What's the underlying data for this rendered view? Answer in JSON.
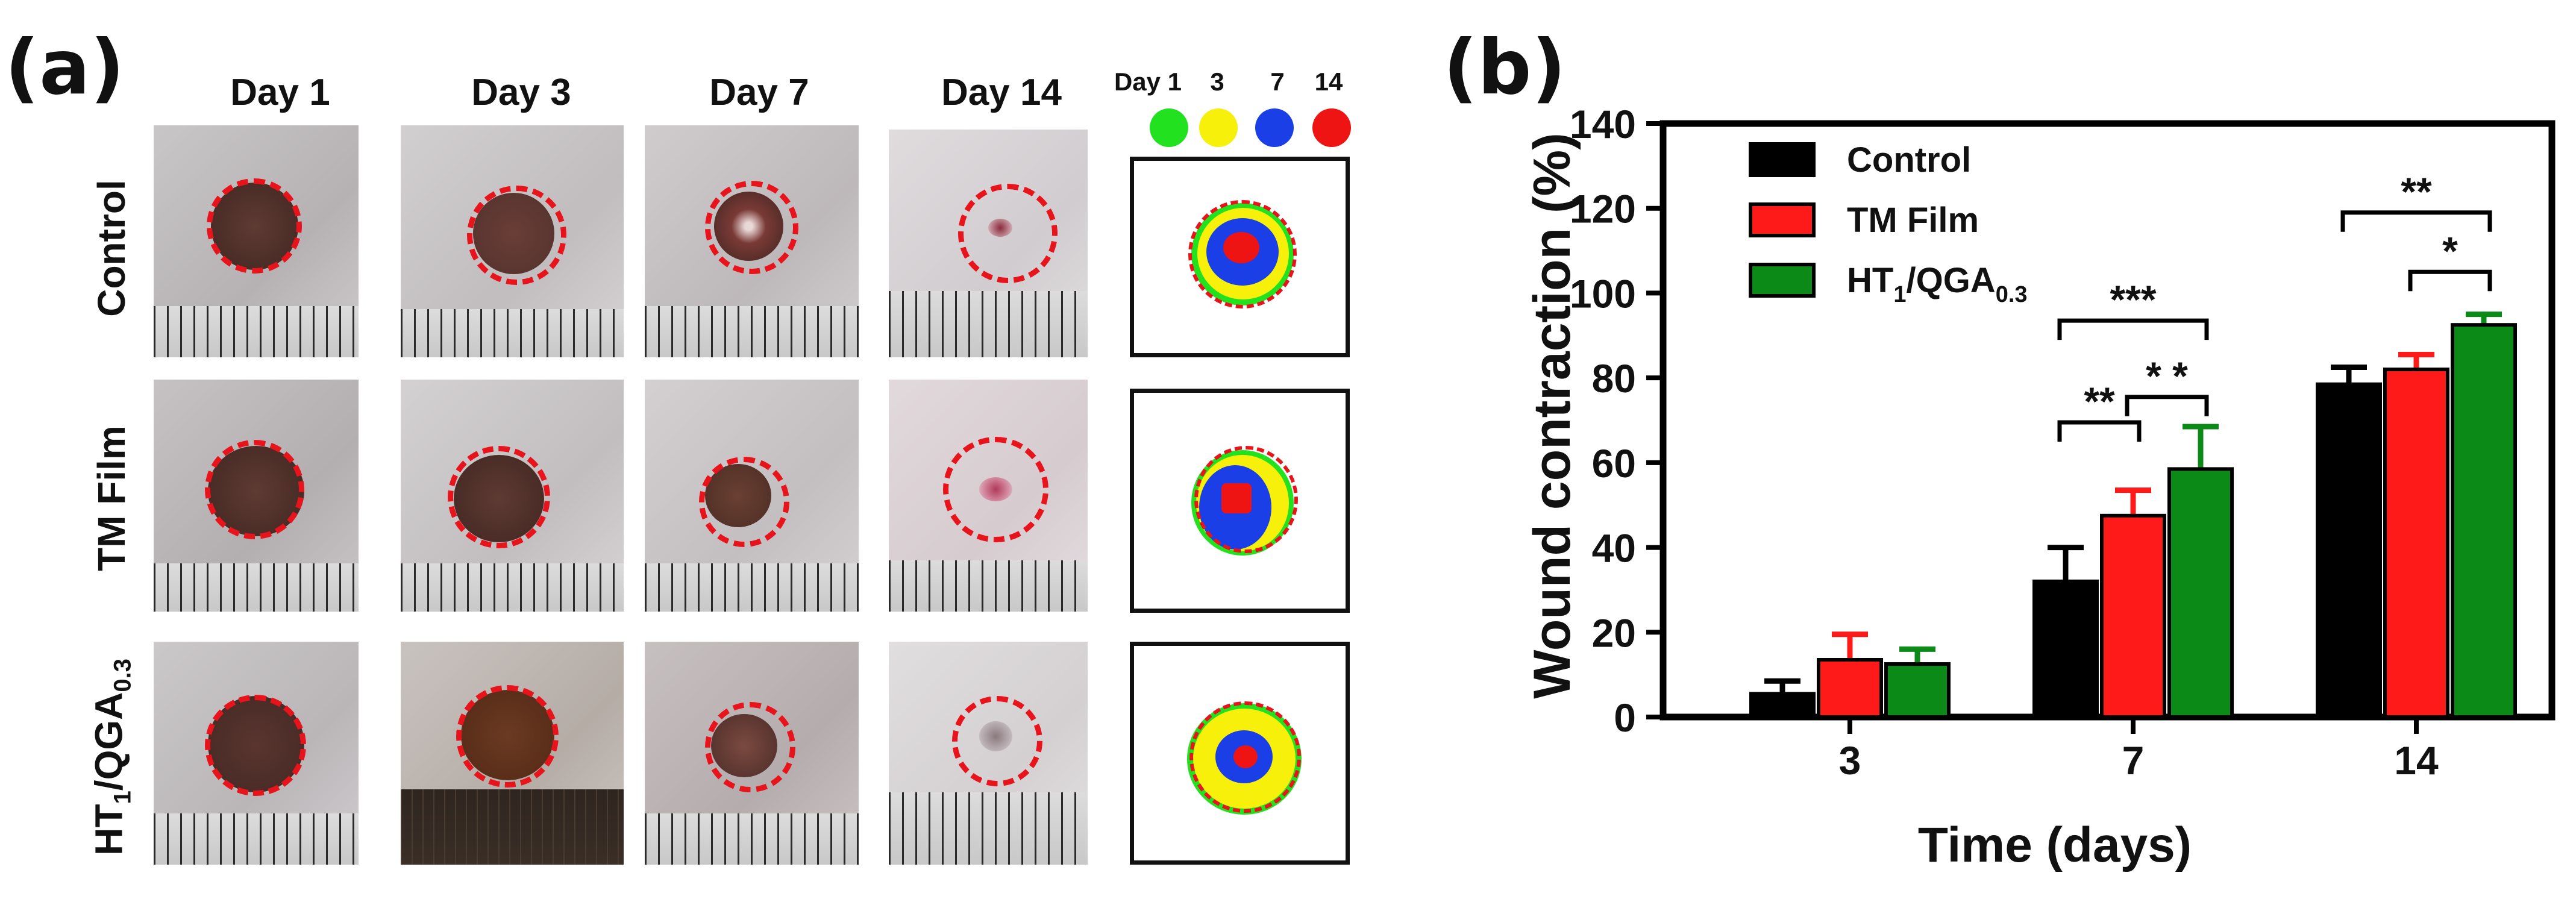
{
  "panel_a": {
    "letter": "(a)",
    "day_headers": [
      "Day 1",
      "Day 3",
      "Day 7",
      "Day 14"
    ],
    "legend": {
      "labels": [
        "Day 1",
        "3",
        "7",
        "14"
      ],
      "colors": [
        "#22e11f",
        "#f6f00b",
        "#1b3fe6",
        "#ef1414"
      ]
    },
    "rows": [
      {
        "label": "Control",
        "label_sub": "",
        "label_tail": ""
      },
      {
        "label": "TM Film",
        "label_sub": "",
        "label_tail": ""
      },
      {
        "label": "HT",
        "label_sub": "1",
        "label_tail": "/QGA",
        "label_sub2": "0.3"
      }
    ]
  },
  "panel_b": {
    "letter": "(b)"
  },
  "chart_data": {
    "type": "bar",
    "title": "",
    "xlabel": "Time (days)",
    "ylabel": "Wound contraction (%)",
    "categories": [
      "3",
      "7",
      "14"
    ],
    "ylim": [
      0,
      140
    ],
    "yticks": [
      "0",
      "20",
      "40",
      "60",
      "80",
      "100",
      "120",
      "140"
    ],
    "legend_position": "top-left",
    "series": [
      {
        "name": "Control",
        "name_main": "Control",
        "color": "#000000",
        "values": [
          5.5,
          32,
          78.5
        ],
        "errors": [
          3,
          8,
          4
        ]
      },
      {
        "name": "TM Film",
        "name_main": "TM Film",
        "color": "#ff1a1a",
        "values": [
          13.5,
          47.5,
          82
        ],
        "errors": [
          6,
          6,
          3.5
        ]
      },
      {
        "name": "HT1/QGA0.3",
        "name_main": "HT",
        "name_sub1": "1",
        "name_mid": "/QGA",
        "name_sub2": "0.3",
        "color": "#0b8a17",
        "values": [
          12.5,
          58.5,
          92.5
        ],
        "errors": [
          3.5,
          10,
          2.5
        ]
      }
    ],
    "significance": [
      {
        "category": "7",
        "from": 0,
        "to": 1,
        "label": "**"
      },
      {
        "category": "7",
        "from": 1,
        "to": 2,
        "label": "* *"
      },
      {
        "category": "7",
        "from": 0,
        "to": 2,
        "label": "***"
      },
      {
        "category": "14",
        "from": 1,
        "to": 2,
        "label": "*"
      },
      {
        "category": "14",
        "from": 0,
        "to": 2,
        "label": "**"
      }
    ]
  }
}
